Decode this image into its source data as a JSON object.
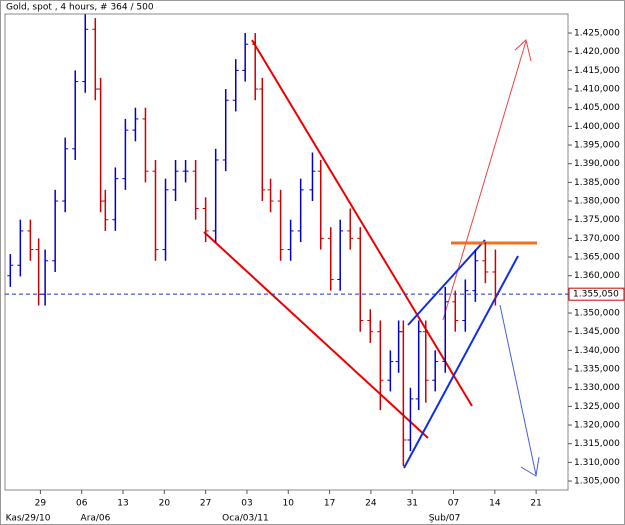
{
  "chart_data": {
    "type": "ohlc",
    "title": "Gold, spot , 4 hours, # 364 / 500",
    "x": [
      -5.1,
      -3.4,
      -1.7,
      -0.3,
      0.8,
      2.5,
      4.2,
      5.9,
      7.6,
      9.3,
      10.2,
      11,
      12.7,
      14.4,
      16.1,
      17.8,
      19.5,
      21.2,
      22.9,
      24.6,
      26.3,
      28,
      29.7,
      31.4,
      33.1,
      34.7,
      36.4,
      37.6,
      39,
      40.7,
      42.4,
      44.1,
      46.1,
      47.5,
      49.2,
      50.8,
      52.5,
      54.2,
      55.9,
      57.6,
      59.3,
      60.7,
      61.5,
      62.7,
      64.1,
      65.3,
      66.9,
      68.6,
      70.3,
      72,
      73.7,
      75.4,
      77.1
    ],
    "open": [
      1.36,
      1.3628,
      1.372,
      1.367,
      1.355,
      1.364,
      1.38,
      1.394,
      1.412,
      1.426,
      1.41,
      1.38,
      1.375,
      1.386,
      1.399,
      1.402,
      1.388,
      1.367,
      1.383,
      1.388,
      1.388,
      1.378,
      1.372,
      1.391,
      1.407,
      1.415,
      1.422,
      1.41,
      1.383,
      1.38,
      1.367,
      1.372,
      1.383,
      1.388,
      1.37,
      1.359,
      1.372,
      1.37,
      1.348,
      1.345,
      1.332,
      1.337,
      1.345,
      1.316,
      1.327,
      1.345,
      1.332,
      1.337,
      1.353,
      1.348,
      1.356,
      1.364,
      1.361
    ],
    "high": [
      1.3658,
      1.375,
      1.375,
      1.37,
      1.367,
      1.383,
      1.397,
      1.415,
      1.43,
      1.429,
      1.413,
      1.383,
      1.389,
      1.402,
      1.405,
      1.405,
      1.391,
      1.386,
      1.391,
      1.391,
      1.391,
      1.381,
      1.394,
      1.41,
      1.418,
      1.425,
      1.425,
      1.413,
      1.386,
      1.383,
      1.375,
      1.386,
      1.393,
      1.391,
      1.373,
      1.375,
      1.378,
      1.373,
      1.351,
      1.348,
      1.34,
      1.348,
      1.348,
      1.33,
      1.348,
      1.348,
      1.34,
      1.357,
      1.356,
      1.359,
      1.367,
      1.369,
      1.367
    ],
    "low": [
      1.357,
      1.3598,
      1.364,
      1.352,
      1.352,
      1.361,
      1.377,
      1.391,
      1.409,
      1.407,
      1.377,
      1.372,
      1.372,
      1.383,
      1.396,
      1.385,
      1.364,
      1.364,
      1.38,
      1.385,
      1.375,
      1.369,
      1.369,
      1.388,
      1.404,
      1.412,
      1.407,
      1.38,
      1.377,
      1.364,
      1.364,
      1.369,
      1.38,
      1.367,
      1.356,
      1.356,
      1.367,
      1.345,
      1.342,
      1.324,
      1.329,
      1.334,
      1.309,
      1.313,
      1.324,
      1.326,
      1.329,
      1.334,
      1.345,
      1.345,
      1.353,
      1.358,
      1.352
    ],
    "close": [
      1.3628,
      1.372,
      1.367,
      1.355,
      1.364,
      1.38,
      1.394,
      1.412,
      1.426,
      1.41,
      1.38,
      1.375,
      1.386,
      1.399,
      1.402,
      1.388,
      1.367,
      1.383,
      1.388,
      1.388,
      1.378,
      1.372,
      1.391,
      1.407,
      1.415,
      1.422,
      1.41,
      1.383,
      1.38,
      1.367,
      1.372,
      1.383,
      1.388,
      1.37,
      1.359,
      1.372,
      1.37,
      1.348,
      1.345,
      1.332,
      1.337,
      1.345,
      1.316,
      1.327,
      1.345,
      1.332,
      1.337,
      1.353,
      1.348,
      1.356,
      1.364,
      1.361,
      1.355
    ],
    "up_color": "#0000cc",
    "down_color": "#cc0000",
    "xlim": [
      -6,
      89.4
    ],
    "ylim": [
      1.3026,
      1.4301
    ],
    "xticks": [
      {
        "value": 0,
        "label": "29"
      },
      {
        "value": 7,
        "label": "06"
      },
      {
        "value": 14,
        "label": "13"
      },
      {
        "value": 21,
        "label": "20"
      },
      {
        "value": 28,
        "label": "27"
      },
      {
        "value": 35,
        "label": "03"
      },
      {
        "value": 42,
        "label": "10"
      },
      {
        "value": 49,
        "label": "17"
      },
      {
        "value": 56,
        "label": "24"
      },
      {
        "value": 63,
        "label": "31"
      },
      {
        "value": 70,
        "label": "07"
      },
      {
        "value": 77,
        "label": "14"
      },
      {
        "value": 84,
        "label": "21"
      }
    ],
    "date_labels": [
      {
        "value": -5.9,
        "label": "Kas/29/10"
      },
      {
        "value": 6.8,
        "label": "Ara/06"
      },
      {
        "value": 30.8,
        "label": "Oca/03/11"
      },
      {
        "value": 65.8,
        "label": "Şub/07"
      }
    ],
    "yticks": [
      {
        "value": 1.305,
        "label": "1.305,000"
      },
      {
        "value": 1.31,
        "label": "1.310,000"
      },
      {
        "value": 1.315,
        "label": "1.315,000"
      },
      {
        "value": 1.32,
        "label": "1.320,000"
      },
      {
        "value": 1.325,
        "label": "1.325,000"
      },
      {
        "value": 1.33,
        "label": "1.330,000"
      },
      {
        "value": 1.335,
        "label": "1.335,000"
      },
      {
        "value": 1.34,
        "label": "1.340,000"
      },
      {
        "value": 1.345,
        "label": "1.345,000"
      },
      {
        "value": 1.35,
        "label": "1.350,000"
      },
      {
        "value": 1.355,
        "label": "1.355,000"
      },
      {
        "value": 1.36,
        "label": "1.360,000"
      },
      {
        "value": 1.365,
        "label": "1.365,000"
      },
      {
        "value": 1.37,
        "label": "1.370,000"
      },
      {
        "value": 1.375,
        "label": "1.375,000"
      },
      {
        "value": 1.38,
        "label": "1.380,000"
      },
      {
        "value": 1.385,
        "label": "1.385,000"
      },
      {
        "value": 1.39,
        "label": "1.390,000"
      },
      {
        "value": 1.395,
        "label": "1.395,000"
      },
      {
        "value": 1.4,
        "label": "1.400,000"
      },
      {
        "value": 1.405,
        "label": "1.405,000"
      },
      {
        "value": 1.41,
        "label": "1.410,000"
      },
      {
        "value": 1.415,
        "label": "1.415,000"
      },
      {
        "value": 1.42,
        "label": "1.420,000"
      },
      {
        "value": 1.425,
        "label": "1.425,000"
      }
    ],
    "last_price": {
      "value": 1.35505,
      "label": "1.355,050"
    }
  }
}
